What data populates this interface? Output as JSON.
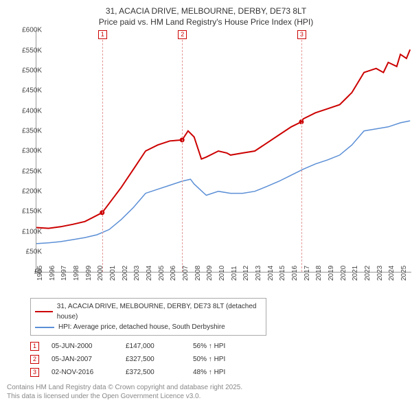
{
  "title": {
    "line1": "31, ACACIA DRIVE, MELBOURNE, DERBY, DE73 8LT",
    "line2": "Price paid vs. HM Land Registry's House Price Index (HPI)"
  },
  "chart": {
    "type": "line",
    "background_color": "#ffffff",
    "xlim": [
      1995,
      2025.9
    ],
    "ylim": [
      0,
      600000
    ],
    "ytick_step": 50000,
    "yticks": [
      "£0",
      "£50K",
      "£100K",
      "£150K",
      "£200K",
      "£250K",
      "£300K",
      "£350K",
      "£400K",
      "£450K",
      "£500K",
      "£550K",
      "£600K"
    ],
    "xticks": [
      1995,
      1996,
      1997,
      1998,
      1999,
      2000,
      2001,
      2002,
      2003,
      2004,
      2005,
      2006,
      2007,
      2008,
      2009,
      2010,
      2011,
      2012,
      2013,
      2014,
      2015,
      2016,
      2017,
      2018,
      2019,
      2020,
      2021,
      2022,
      2023,
      2024,
      2025
    ],
    "series": {
      "property": {
        "label": "31, ACACIA DRIVE, MELBOURNE, DERBY, DE73 8LT (detached house)",
        "color": "#cc0000",
        "line_width": 2,
        "data": [
          [
            1995,
            110000
          ],
          [
            1996,
            108000
          ],
          [
            1997,
            112000
          ],
          [
            1998,
            118000
          ],
          [
            1999,
            125000
          ],
          [
            2000.42,
            147000
          ],
          [
            2001,
            170000
          ],
          [
            2002,
            210000
          ],
          [
            2003,
            255000
          ],
          [
            2004,
            300000
          ],
          [
            2005,
            315000
          ],
          [
            2006,
            325000
          ],
          [
            2007.01,
            327500
          ],
          [
            2007.5,
            350000
          ],
          [
            2008,
            335000
          ],
          [
            2008.6,
            280000
          ],
          [
            2009,
            285000
          ],
          [
            2010,
            300000
          ],
          [
            2010.7,
            295000
          ],
          [
            2011,
            290000
          ],
          [
            2012,
            295000
          ],
          [
            2013,
            300000
          ],
          [
            2014,
            320000
          ],
          [
            2015,
            340000
          ],
          [
            2016,
            360000
          ],
          [
            2016.84,
            372500
          ],
          [
            2017,
            380000
          ],
          [
            2018,
            395000
          ],
          [
            2019,
            405000
          ],
          [
            2020,
            415000
          ],
          [
            2021,
            445000
          ],
          [
            2022,
            495000
          ],
          [
            2023,
            505000
          ],
          [
            2023.6,
            495000
          ],
          [
            2024,
            520000
          ],
          [
            2024.7,
            510000
          ],
          [
            2025,
            540000
          ],
          [
            2025.5,
            530000
          ],
          [
            2025.8,
            552000
          ]
        ]
      },
      "hpi": {
        "label": "HPI: Average price, detached house, South Derbyshire",
        "color": "#5b8fd6",
        "line_width": 1.5,
        "data": [
          [
            1995,
            70000
          ],
          [
            1996,
            72000
          ],
          [
            1997,
            75000
          ],
          [
            1998,
            80000
          ],
          [
            1999,
            85000
          ],
          [
            2000,
            92000
          ],
          [
            2001,
            105000
          ],
          [
            2002,
            130000
          ],
          [
            2003,
            160000
          ],
          [
            2004,
            195000
          ],
          [
            2005,
            205000
          ],
          [
            2006,
            215000
          ],
          [
            2007,
            225000
          ],
          [
            2007.7,
            230000
          ],
          [
            2008,
            218000
          ],
          [
            2009,
            190000
          ],
          [
            2010,
            200000
          ],
          [
            2011,
            195000
          ],
          [
            2012,
            195000
          ],
          [
            2013,
            200000
          ],
          [
            2014,
            212000
          ],
          [
            2015,
            225000
          ],
          [
            2016,
            240000
          ],
          [
            2017,
            255000
          ],
          [
            2018,
            268000
          ],
          [
            2019,
            278000
          ],
          [
            2020,
            290000
          ],
          [
            2021,
            315000
          ],
          [
            2022,
            350000
          ],
          [
            2023,
            355000
          ],
          [
            2024,
            360000
          ],
          [
            2025,
            370000
          ],
          [
            2025.8,
            375000
          ]
        ]
      }
    },
    "markers": [
      {
        "n": "1",
        "x": 2000.42,
        "y": 147000
      },
      {
        "n": "2",
        "x": 2007.01,
        "y": 327500
      },
      {
        "n": "3",
        "x": 2016.84,
        "y": 372500
      }
    ]
  },
  "sales": [
    {
      "n": "1",
      "date": "05-JUN-2000",
      "price": "£147,000",
      "hpi": "56% ↑ HPI"
    },
    {
      "n": "2",
      "date": "05-JAN-2007",
      "price": "£327,500",
      "hpi": "50% ↑ HPI"
    },
    {
      "n": "3",
      "date": "02-NOV-2016",
      "price": "£372,500",
      "hpi": "48% ↑ HPI"
    }
  ],
  "footer": {
    "l1": "Contains HM Land Registry data © Crown copyright and database right 2025.",
    "l2": "This data is licensed under the Open Government Licence v3.0."
  }
}
